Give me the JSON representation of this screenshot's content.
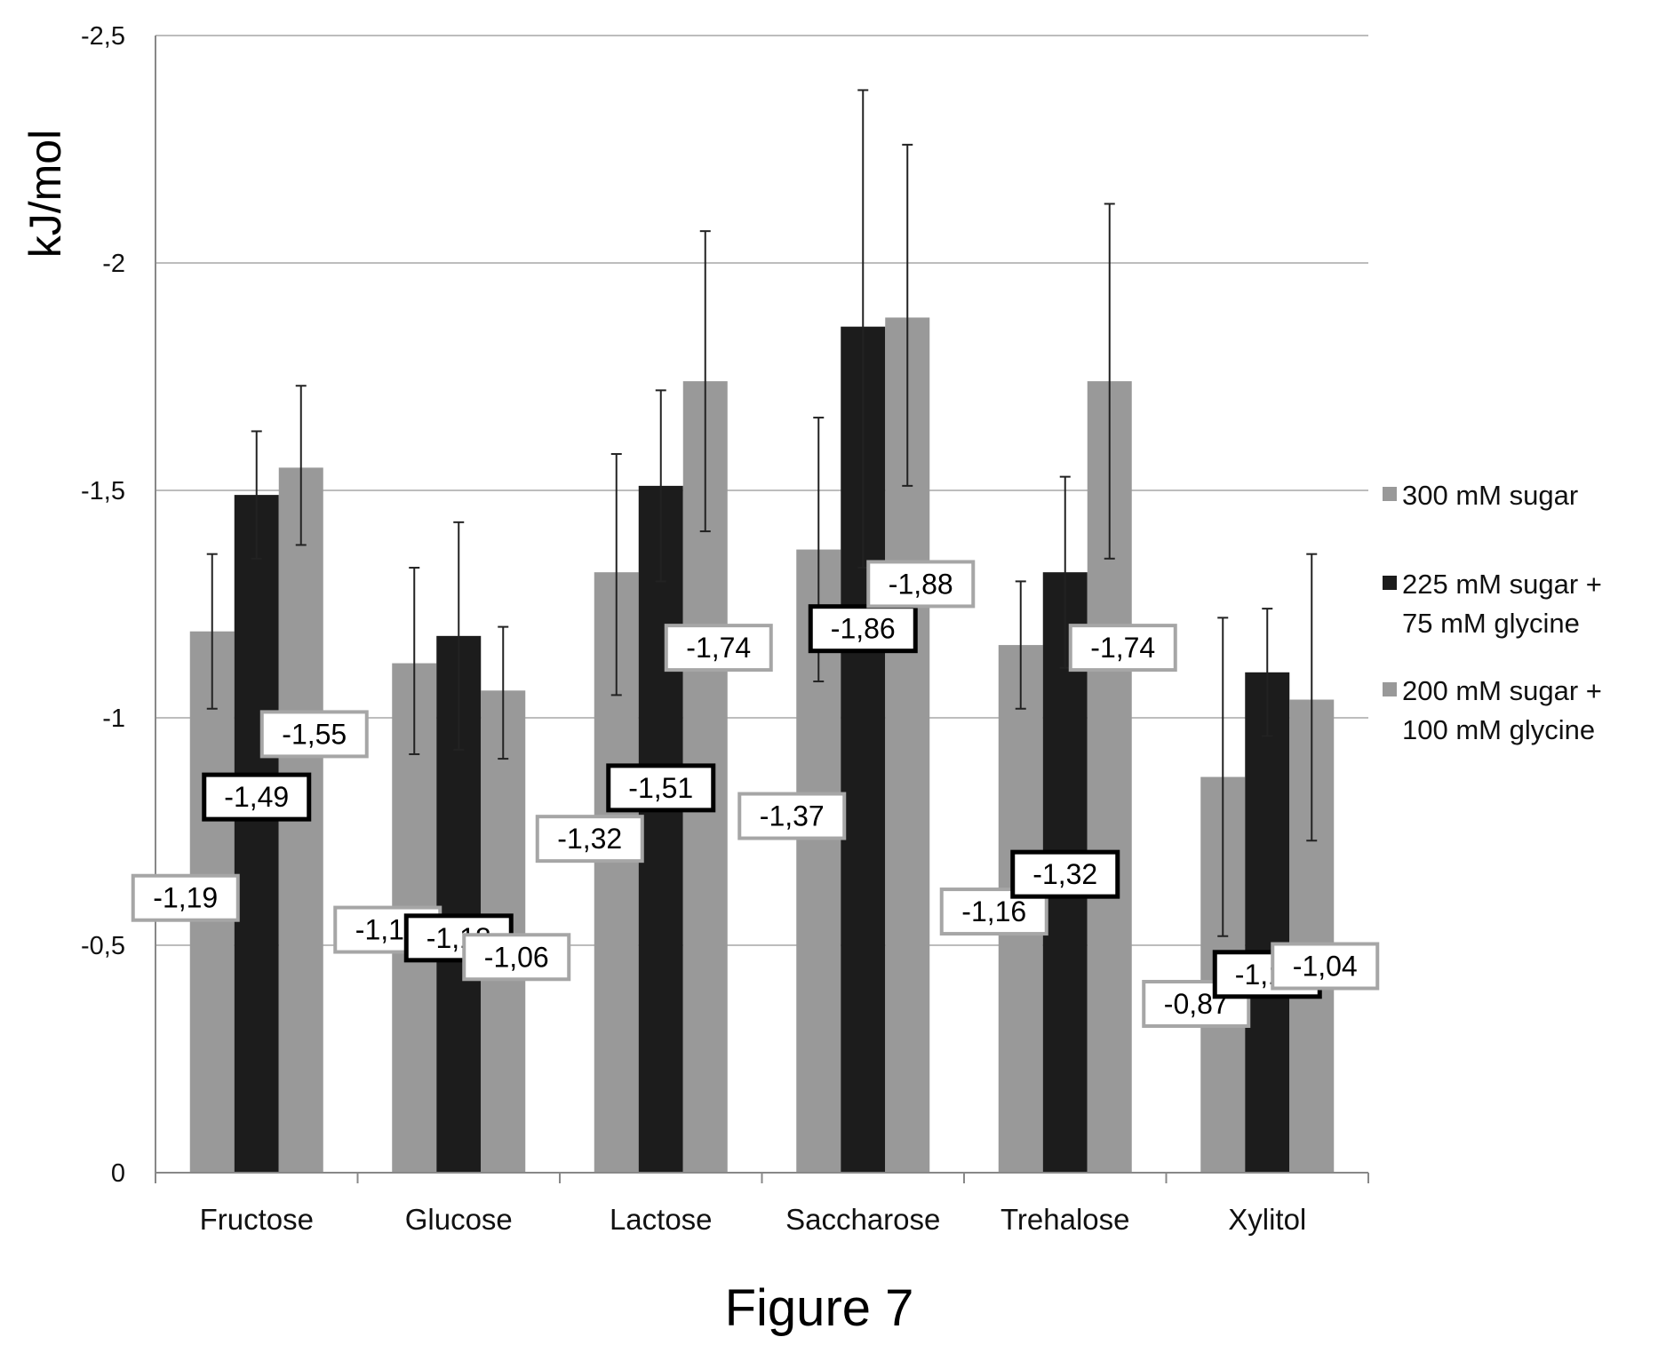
{
  "figure_caption": "Figure 7",
  "colors": {
    "series_light": "#999999",
    "series_dark": "#1c1c1c",
    "grid": "#bdbdbd",
    "axis": "#888888"
  },
  "chart_data": {
    "type": "bar",
    "title": "",
    "xlabel": "",
    "ylabel": "kJ/mol",
    "categories": [
      "Fructose",
      "Glucose",
      "Lactose",
      "Saccharose",
      "Trehalose",
      "Xylitol"
    ],
    "y_axis_reversed": true,
    "ylim": [
      0,
      -2.5
    ],
    "yticks": [
      0,
      -0.5,
      -1,
      -1.5,
      -2,
      -2.5
    ],
    "ytick_labels": [
      "0",
      "-0,5",
      "-1",
      "-1,5",
      "-2",
      "-2,5"
    ],
    "grid": true,
    "legend_position": "right",
    "series": [
      {
        "name": "300 mM sugar",
        "color": "#999999",
        "values": [
          -1.19,
          -1.12,
          -1.32,
          -1.37,
          -1.16,
          -0.87
        ],
        "labels": [
          "-1,19",
          "-1,12",
          "-1,32",
          "-1,37",
          "-1,16",
          "-0,87"
        ],
        "error_low": [
          -1.02,
          -0.92,
          -1.05,
          -1.08,
          -1.02,
          -0.52
        ],
        "error_high": [
          -1.36,
          -1.33,
          -1.58,
          -1.66,
          -1.3,
          -1.22
        ]
      },
      {
        "name": "225 mM sugar + 75 mM glycine",
        "color": "#1c1c1c",
        "values": [
          -1.49,
          -1.18,
          -1.51,
          -1.86,
          -1.32,
          -1.1
        ],
        "labels": [
          "-1,49",
          "-1,18",
          "-1,51",
          "-1,86",
          "-1,32",
          "-1,10"
        ],
        "error_low": [
          -1.35,
          -0.93,
          -1.3,
          -1.33,
          -1.11,
          -0.96
        ],
        "error_high": [
          -1.63,
          -1.43,
          -1.72,
          -2.38,
          -1.53,
          -1.24
        ]
      },
      {
        "name": "200 mM sugar + 100 mM glycine",
        "color": "#999999",
        "values": [
          -1.55,
          -1.06,
          -1.74,
          -1.88,
          -1.74,
          -1.04
        ],
        "labels": [
          "-1,55",
          "-1,06",
          "-1,74",
          "-1,88",
          "-1,74",
          "-1,04"
        ],
        "error_low": [
          -1.38,
          -0.91,
          -1.41,
          -1.51,
          -1.35,
          -0.73
        ],
        "error_high": [
          -1.73,
          -1.2,
          -2.07,
          -2.26,
          -2.13,
          -1.36
        ]
      }
    ],
    "legend": {
      "entries": [
        {
          "lines": [
            "300 mM sugar"
          ]
        },
        {
          "lines": [
            "225 mM sugar +",
            "75 mM glycine"
          ]
        },
        {
          "lines": [
            "200 mM sugar +",
            "100 mM glycine"
          ]
        }
      ]
    }
  }
}
